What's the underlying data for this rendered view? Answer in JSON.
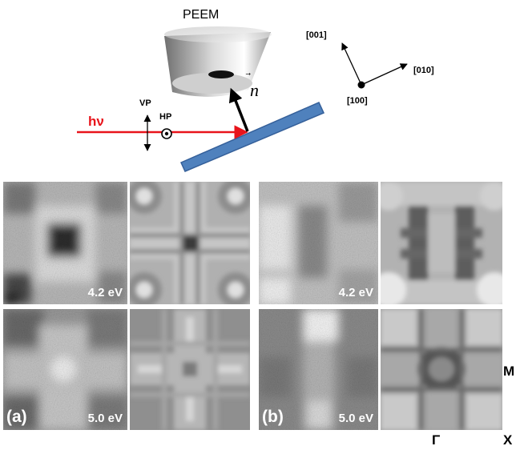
{
  "setup": {
    "detector_label": "PEEM",
    "normal_label": "n",
    "photon_label": "hν",
    "vertical_polarization_label": "VP",
    "horizontal_polarization_label": "HP"
  },
  "crystal_axes": {
    "axis_001": "[001]",
    "axis_010": "[010]",
    "axis_100": "[100]"
  },
  "panels": {
    "a": {
      "tag": "(a)",
      "top_energy": "4.2 eV",
      "bottom_energy": "5.0 eV"
    },
    "b": {
      "tag": "(b)",
      "top_energy": "4.2 eV",
      "bottom_energy": "5.0 eV"
    }
  },
  "bz_points": {
    "m": "M",
    "gamma": "Γ",
    "x": "X"
  },
  "colors": {
    "beam": "#e8141b",
    "sample": "#4f81bd",
    "sample_edge": "#35609a"
  }
}
